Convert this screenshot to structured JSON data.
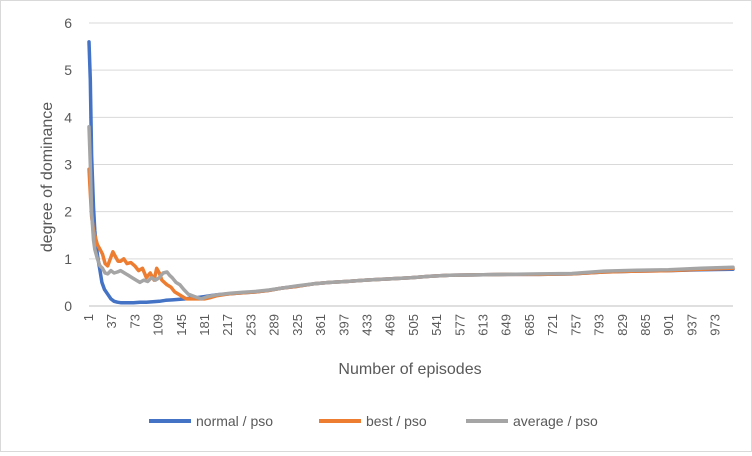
{
  "chart_data": {
    "type": "line",
    "title": "",
    "xlabel": "Number of episodes",
    "ylabel": "degree of dominance",
    "ylim": [
      0,
      6
    ],
    "yticks": [
      "0",
      "1",
      "2",
      "3",
      "4",
      "5",
      "6"
    ],
    "xlim": [
      1,
      1000
    ],
    "xticks": [
      "1",
      "37",
      "73",
      "109",
      "145",
      "181",
      "217",
      "253",
      "289",
      "325",
      "361",
      "397",
      "433",
      "469",
      "505",
      "541",
      "577",
      "613",
      "649",
      "685",
      "721",
      "757",
      "793",
      "829",
      "865",
      "901",
      "937",
      "973"
    ],
    "grid": "horizontal",
    "legend_position": "bottom",
    "series": [
      {
        "name": "normal / pso",
        "color": "#4472c4",
        "x": [
          1,
          3,
          5,
          8,
          10,
          12,
          15,
          18,
          21,
          25,
          30,
          35,
          40,
          45,
          50,
          60,
          70,
          80,
          90,
          100,
          110,
          120,
          130,
          140,
          150,
          160,
          170,
          180,
          190,
          200,
          220,
          240,
          260,
          280,
          300,
          325,
          350,
          375,
          400,
          430,
          460,
          500,
          530,
          560,
          600,
          650,
          700,
          750,
          800,
          850,
          900,
          950,
          1000
        ],
        "y": [
          5.6,
          4.8,
          3.2,
          2.1,
          1.6,
          1.3,
          1.0,
          0.75,
          0.5,
          0.35,
          0.25,
          0.15,
          0.1,
          0.08,
          0.07,
          0.07,
          0.07,
          0.08,
          0.08,
          0.09,
          0.1,
          0.12,
          0.13,
          0.14,
          0.15,
          0.17,
          0.18,
          0.2,
          0.22,
          0.24,
          0.26,
          0.28,
          0.3,
          0.33,
          0.38,
          0.42,
          0.47,
          0.5,
          0.52,
          0.55,
          0.57,
          0.6,
          0.63,
          0.65,
          0.66,
          0.67,
          0.67,
          0.68,
          0.72,
          0.74,
          0.75,
          0.77,
          0.78
        ]
      },
      {
        "name": "best / pso",
        "color": "#ed7d31",
        "x": [
          1,
          3,
          5,
          8,
          10,
          14,
          18,
          22,
          26,
          30,
          34,
          38,
          42,
          46,
          50,
          55,
          60,
          66,
          72,
          78,
          84,
          90,
          96,
          102,
          106,
          110,
          114,
          118,
          122,
          128,
          134,
          140,
          146,
          152,
          160,
          170,
          180,
          190,
          200,
          220,
          240,
          260,
          280,
          300,
          325,
          350,
          375,
          400,
          430,
          460,
          500,
          530,
          560,
          600,
          650,
          700,
          750,
          800,
          850,
          900,
          950,
          1000
        ],
        "y": [
          2.9,
          2.4,
          1.9,
          1.6,
          1.5,
          1.3,
          1.2,
          1.1,
          0.9,
          0.85,
          1.0,
          1.15,
          1.05,
          0.95,
          0.95,
          1.0,
          0.9,
          0.92,
          0.85,
          0.75,
          0.8,
          0.6,
          0.7,
          0.55,
          0.8,
          0.7,
          0.55,
          0.5,
          0.45,
          0.4,
          0.3,
          0.25,
          0.2,
          0.15,
          0.15,
          0.15,
          0.15,
          0.18,
          0.22,
          0.26,
          0.28,
          0.3,
          0.33,
          0.38,
          0.42,
          0.47,
          0.5,
          0.52,
          0.55,
          0.57,
          0.6,
          0.63,
          0.65,
          0.66,
          0.67,
          0.67,
          0.68,
          0.72,
          0.74,
          0.75,
          0.78,
          0.8
        ]
      },
      {
        "name": "average / pso",
        "color": "#a5a5a5",
        "x": [
          1,
          3,
          5,
          8,
          10,
          14,
          18,
          22,
          26,
          30,
          35,
          40,
          45,
          50,
          56,
          62,
          68,
          74,
          80,
          86,
          92,
          98,
          104,
          110,
          116,
          122,
          126,
          130,
          136,
          142,
          148,
          155,
          165,
          175,
          185,
          200,
          220,
          240,
          260,
          280,
          300,
          325,
          350,
          375,
          400,
          430,
          460,
          500,
          530,
          560,
          600,
          650,
          700,
          750,
          800,
          850,
          900,
          950,
          1000
        ],
        "y": [
          3.8,
          3.0,
          2.0,
          1.4,
          1.2,
          1.0,
          0.85,
          0.8,
          0.7,
          0.68,
          0.75,
          0.7,
          0.72,
          0.75,
          0.7,
          0.65,
          0.6,
          0.55,
          0.5,
          0.55,
          0.52,
          0.6,
          0.55,
          0.6,
          0.7,
          0.72,
          0.65,
          0.6,
          0.5,
          0.45,
          0.35,
          0.25,
          0.2,
          0.15,
          0.2,
          0.24,
          0.27,
          0.29,
          0.31,
          0.34,
          0.38,
          0.43,
          0.47,
          0.5,
          0.52,
          0.55,
          0.57,
          0.6,
          0.63,
          0.65,
          0.66,
          0.67,
          0.68,
          0.69,
          0.74,
          0.76,
          0.77,
          0.8,
          0.82
        ]
      }
    ]
  }
}
